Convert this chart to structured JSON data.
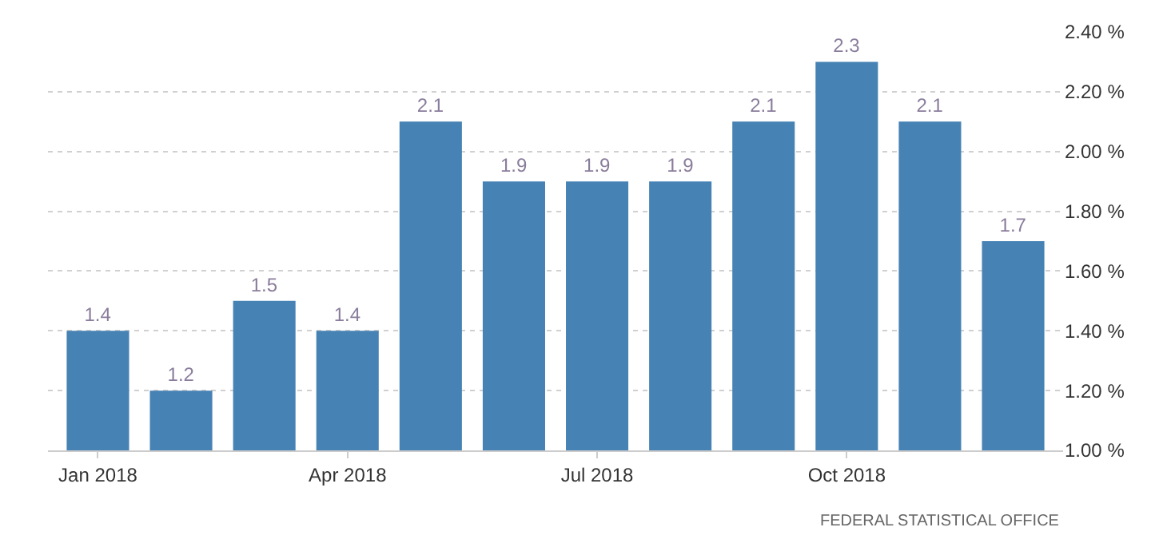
{
  "chart_data": {
    "type": "bar",
    "categories": [
      "Jan 2018",
      null,
      null,
      "Apr 2018",
      null,
      null,
      "Jul 2018",
      null,
      null,
      "Oct 2018",
      null,
      null
    ],
    "values": [
      1.4,
      1.2,
      1.5,
      1.4,
      2.1,
      1.9,
      1.9,
      1.9,
      2.1,
      2.3,
      2.1,
      1.7
    ],
    "color": "#4682b4",
    "ylim": [
      1.0,
      2.4
    ],
    "yticks": [
      {
        "value": 1.0,
        "label": "1.00 %"
      },
      {
        "value": 1.2,
        "label": "1.20 %"
      },
      {
        "value": 1.4,
        "label": "1.40 %"
      },
      {
        "value": 1.6,
        "label": "1.60 %"
      },
      {
        "value": 1.8,
        "label": "1.80 %"
      },
      {
        "value": 2.0,
        "label": "2.00 %"
      },
      {
        "value": 2.2,
        "label": "2.20 %"
      },
      {
        "value": 2.4,
        "label": "2.40 %"
      }
    ],
    "grid": "y",
    "data_labels": true,
    "annotations": [
      "FEDERAL STATISTICAL OFFICE"
    ]
  }
}
